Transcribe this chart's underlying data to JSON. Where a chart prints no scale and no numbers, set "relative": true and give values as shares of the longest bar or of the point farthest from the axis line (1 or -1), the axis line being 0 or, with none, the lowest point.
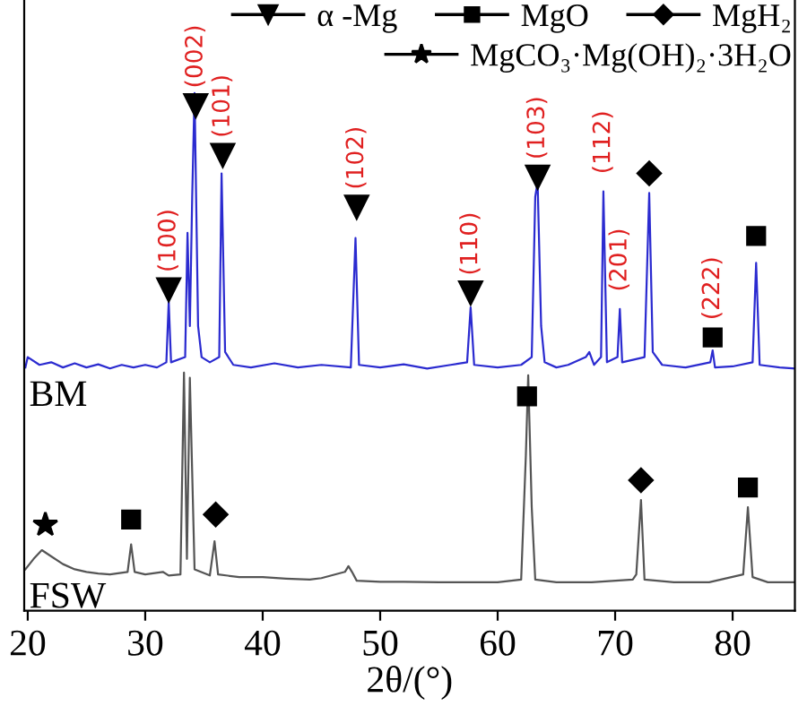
{
  "chart_data": {
    "type": "line",
    "relative": true,
    "xlabel": "2θ/(°)",
    "xlim": [
      19.7,
      85.3
    ],
    "xticks": [
      20,
      30,
      40,
      50,
      60,
      70,
      80
    ],
    "tick_labels": "x",
    "grid": false,
    "legend": "top right",
    "series": [
      {
        "name": "BM",
        "color": "#2b2bd0",
        "x": [
          19.8,
          20,
          21,
          22,
          23,
          24,
          25,
          26,
          27,
          28,
          29,
          30,
          31,
          31.8,
          32.0,
          32.2,
          33.4,
          33.6,
          33.8,
          34.0,
          34.2,
          34.5,
          34.8,
          35.5,
          36.3,
          36.5,
          36.8,
          37.5,
          39,
          41,
          43,
          45,
          47.5,
          47.9,
          48.2,
          50,
          52,
          54,
          56,
          57.4,
          57.7,
          58.0,
          60,
          62,
          62.9,
          63.2,
          63.4,
          63.7,
          64,
          65,
          66,
          67.5,
          67.8,
          68.2,
          68.8,
          69.0,
          69.3,
          70.2,
          70.4,
          70.6,
          72.5,
          72.9,
          73.2,
          74,
          76,
          78.1,
          78.3,
          78.5,
          80,
          81.7,
          82.0,
          82.3,
          84,
          85.3
        ],
        "values": [
          0.47,
          0.49,
          0.475,
          0.48,
          0.47,
          0.478,
          0.47,
          0.476,
          0.468,
          0.475,
          0.47,
          0.475,
          0.47,
          0.48,
          0.597,
          0.48,
          0.49,
          0.73,
          0.55,
          0.8,
          1.0,
          0.55,
          0.49,
          0.48,
          0.49,
          0.845,
          0.5,
          0.475,
          0.47,
          0.478,
          0.47,
          0.475,
          0.47,
          0.72,
          0.475,
          0.47,
          0.476,
          0.468,
          0.475,
          0.48,
          0.586,
          0.475,
          0.47,
          0.475,
          0.49,
          0.8,
          0.828,
          0.55,
          0.48,
          0.47,
          0.475,
          0.49,
          0.5,
          0.475,
          0.49,
          0.81,
          0.48,
          0.49,
          0.583,
          0.48,
          0.49,
          0.807,
          0.5,
          0.475,
          0.47,
          0.48,
          0.503,
          0.47,
          0.472,
          0.48,
          0.672,
          0.475,
          0.47,
          0.468
        ]
      },
      {
        "name": "FSW",
        "color": "#555555",
        "x": [
          19.8,
          20.5,
          21.2,
          22,
          23,
          24,
          25,
          26,
          27,
          28.5,
          28.8,
          29.1,
          30,
          31.5,
          32,
          33.0,
          33.3,
          33.55,
          33.8,
          34.2,
          35.5,
          35.9,
          36.2,
          38,
          40,
          42,
          44,
          45,
          47.0,
          47.3,
          47.6,
          48,
          50,
          52,
          55,
          58,
          60,
          62,
          62.4,
          62.6,
          62.9,
          63.2,
          65,
          68,
          71.5,
          71.8,
          72.2,
          72.5,
          75,
          78,
          80.9,
          81.3,
          81.7,
          83,
          85.3
        ],
        "values": [
          0.08,
          0.1,
          0.117,
          0.105,
          0.09,
          0.08,
          0.075,
          0.072,
          0.07,
          0.075,
          0.128,
          0.075,
          0.07,
          0.075,
          0.068,
          0.07,
          0.46,
          0.1,
          0.45,
          0.08,
          0.068,
          0.134,
          0.07,
          0.065,
          0.065,
          0.062,
          0.06,
          0.063,
          0.075,
          0.086,
          0.075,
          0.058,
          0.056,
          0.056,
          0.055,
          0.055,
          0.055,
          0.06,
          0.3,
          0.455,
          0.2,
          0.06,
          0.055,
          0.055,
          0.06,
          0.07,
          0.214,
          0.06,
          0.055,
          0.055,
          0.07,
          0.2,
          0.065,
          0.055,
          0.055
        ]
      },
      {
        "name": "α -Mg",
        "type": "scatter",
        "marker": "triangle",
        "color": "#000000",
        "x": [
          32.0,
          34.3,
          36.6,
          48.0,
          57.7,
          63.4
        ],
        "values": [
          0.62,
          0.976,
          0.88,
          0.78,
          0.614,
          0.838
        ]
      },
      {
        "name": "MgO",
        "type": "scatter",
        "marker": "square",
        "color": "#000000",
        "x": [
          82.0,
          78.3,
          62.5,
          28.8,
          81.3
        ],
        "values": [
          0.724,
          0.528,
          0.414,
          0.176,
          0.238
        ]
      },
      {
        "name": "MgH₂",
        "type": "scatter",
        "marker": "diamond",
        "color": "#000000",
        "x": [
          72.9,
          36.0,
          72.2
        ],
        "values": [
          0.845,
          0.186,
          0.252
        ]
      },
      {
        "name": "MgCO₃·Mg(OH)₂·3H₂O",
        "type": "scatter",
        "marker": "star",
        "color": "#000000",
        "x": [
          21.5
        ],
        "values": [
          0.166
        ]
      }
    ],
    "annotations": [
      {
        "text": "(100)",
        "x": 32.0,
        "y": 0.62
      },
      {
        "text": "(002)",
        "x": 34.3,
        "y": 0.976
      },
      {
        "text": "(101)",
        "x": 36.6,
        "y": 0.88
      },
      {
        "text": "(102)",
        "x": 48.0,
        "y": 0.78
      },
      {
        "text": "(110)",
        "x": 57.7,
        "y": 0.614
      },
      {
        "text": "(103)",
        "x": 63.4,
        "y": 0.838
      },
      {
        "text": "(112)",
        "x": 69.0,
        "y": 0.81
      },
      {
        "text": "(201)",
        "x": 70.4,
        "y": 0.583
      },
      {
        "text": "(222)",
        "x": 78.3,
        "y": 0.528
      }
    ]
  }
}
